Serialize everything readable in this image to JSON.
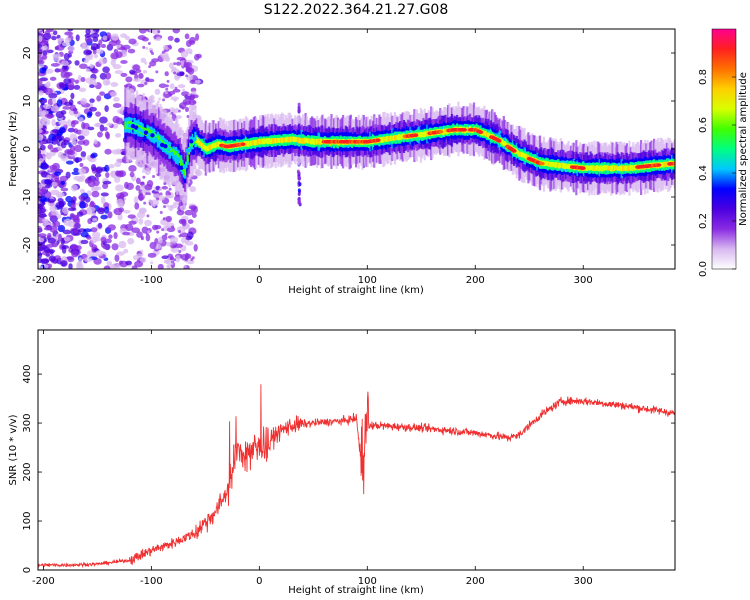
{
  "title": "S122.2022.364.21.27.G08",
  "chart_data": [
    {
      "type": "heatmap",
      "xlabel": "Height of straight line (km)",
      "ylabel": "Frequency (Hz)",
      "xlim": [
        -205,
        385
      ],
      "ylim": [
        -25,
        25
      ],
      "xticks": [
        "-200",
        "-100",
        "0",
        "100",
        "200",
        "300"
      ],
      "yticks": [
        "-20",
        "-10",
        "0",
        "10",
        "20"
      ],
      "colorbar": {
        "label": "Normalized spectral amplitude",
        "ticks": [
          "0.0",
          "0.2",
          "0.4",
          "0.6",
          "0.8"
        ],
        "range": [
          0,
          1
        ],
        "colormap": [
          "#ffffff",
          "#d8b8f0",
          "#8a2be2",
          "#4b00e0",
          "#0000ff",
          "#00c8ff",
          "#00ff80",
          "#40ff00",
          "#d8ff00",
          "#ffd000",
          "#ff7000",
          "#ff2020",
          "#ff0090"
        ]
      },
      "ridge": {
        "description_free": true,
        "x": [
          -120,
          -100,
          -85,
          -75,
          -70,
          -65,
          -60,
          -50,
          -40,
          -30,
          0,
          30,
          50,
          100,
          130,
          150,
          180,
          200,
          220,
          240,
          260,
          280,
          300,
          340,
          385
        ],
        "y": [
          5,
          3,
          0,
          -2,
          -5,
          1,
          2,
          0,
          1,
          0.5,
          1.5,
          2,
          1.5,
          1.5,
          2.5,
          3,
          4,
          4,
          2,
          -1,
          -3,
          -3.5,
          -4,
          -4,
          -3
        ]
      }
    },
    {
      "type": "line",
      "xlabel": "Height of straight line (km)",
      "ylabel": "SNR (10 * v/v)",
      "xlim": [
        -205,
        385
      ],
      "ylim": [
        0,
        490
      ],
      "xticks": [
        "-200",
        "-100",
        "0",
        "100",
        "200",
        "300"
      ],
      "yticks": [
        "0",
        "100",
        "200",
        "300",
        "400"
      ],
      "color": "#f03030",
      "series": [
        {
          "x": [
            -205,
            -180,
            -150,
            -120,
            -100,
            -80,
            -60,
            -40,
            -30,
            -25,
            -20,
            -10,
            0,
            10,
            20,
            30,
            50,
            80,
            90,
            95,
            98,
            100,
            110,
            150,
            200,
            230,
            240,
            260,
            280,
            300,
            340,
            385
          ],
          "y": [
            10,
            10,
            12,
            20,
            40,
            55,
            75,
            120,
            160,
            200,
            240,
            240,
            250,
            265,
            285,
            295,
            300,
            305,
            310,
            200,
            300,
            295,
            295,
            290,
            280,
            270,
            275,
            315,
            345,
            345,
            335,
            320
          ]
        }
      ]
    }
  ]
}
